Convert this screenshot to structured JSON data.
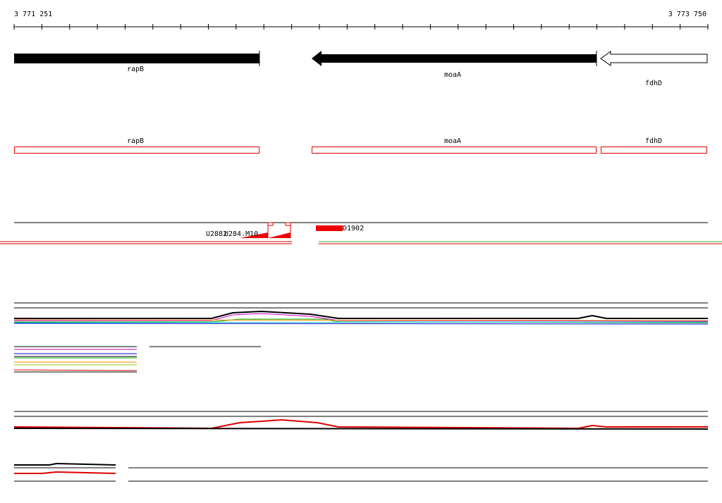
{
  "ruler": {
    "start": "3 771 251",
    "end": "3 773 750"
  },
  "genes": [
    {
      "label": "rapB"
    },
    {
      "label": "moaA"
    },
    {
      "label": "fdhD"
    }
  ],
  "cds": [
    {
      "label": "rapB"
    },
    {
      "label": "moaA"
    },
    {
      "label": "fdhD"
    }
  ],
  "features": [
    {
      "label": "U2882"
    },
    {
      "label": "U284.M10"
    },
    {
      "label": "D1902"
    }
  ]
}
